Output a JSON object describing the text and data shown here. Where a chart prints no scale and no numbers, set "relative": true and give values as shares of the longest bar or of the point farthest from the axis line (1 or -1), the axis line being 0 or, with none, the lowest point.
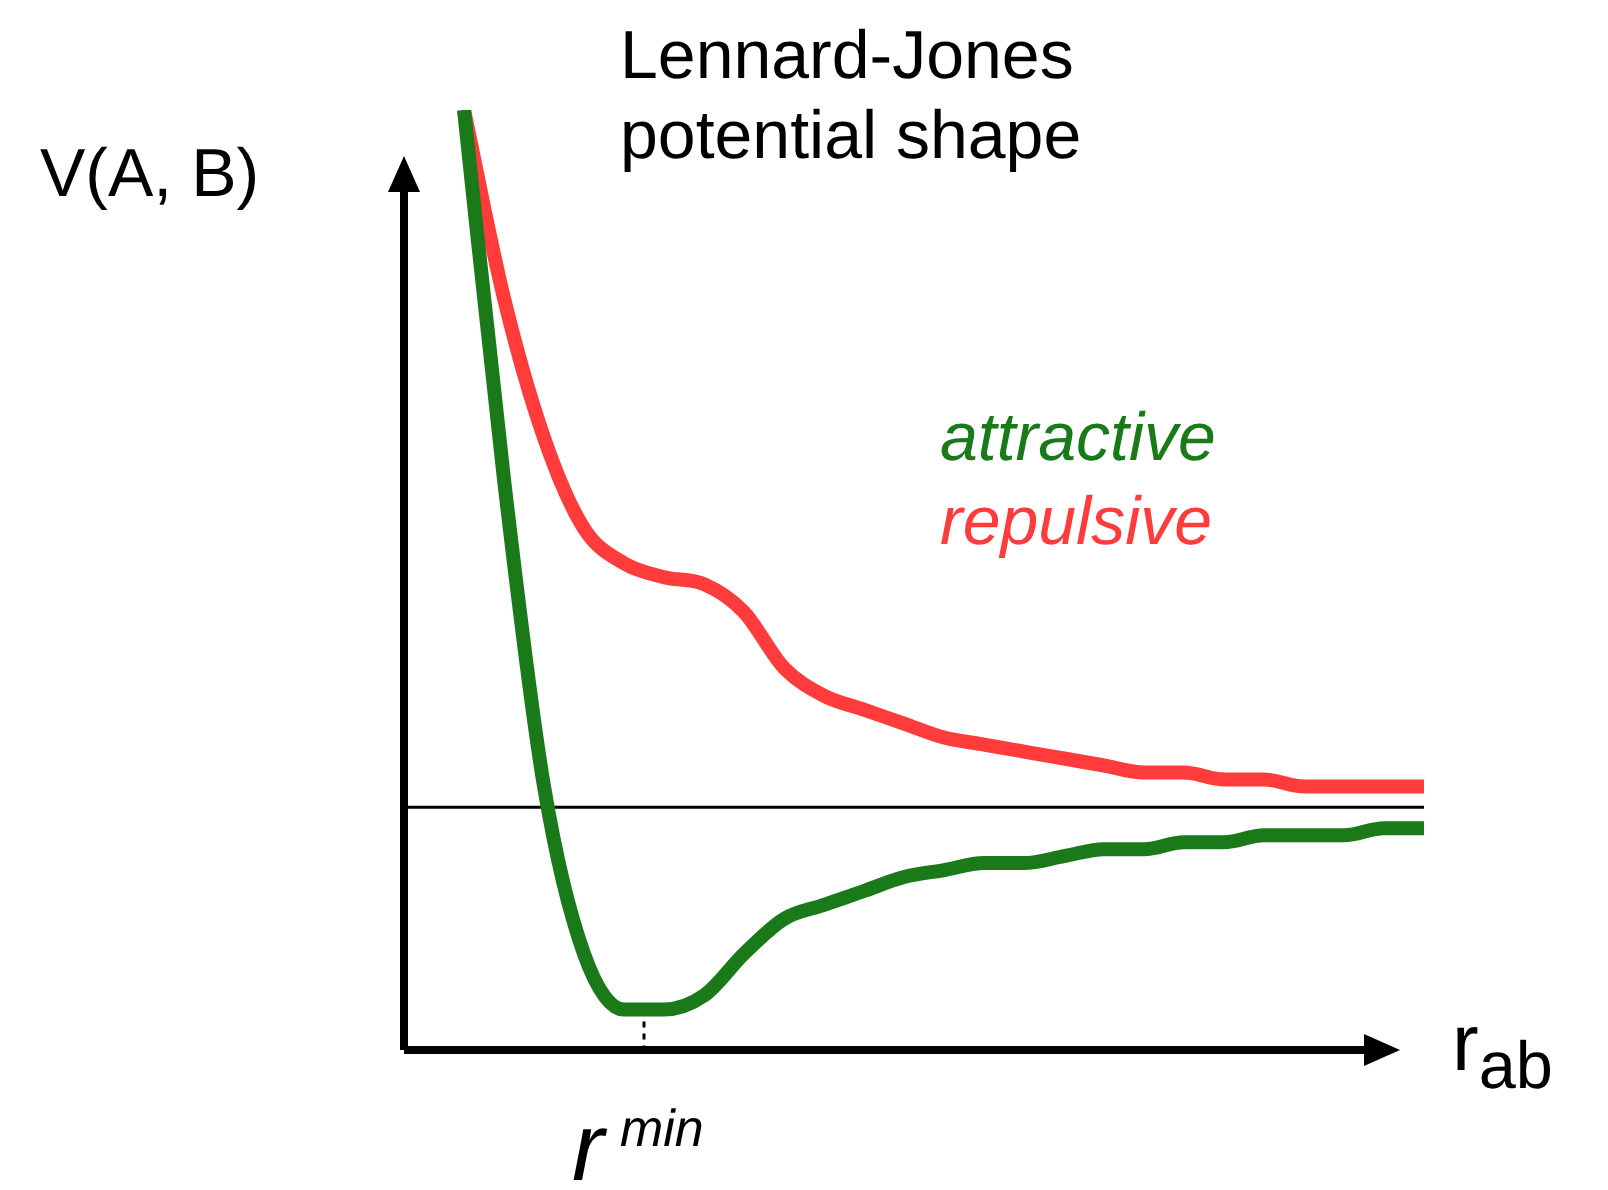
{
  "chart_data": {
    "type": "line",
    "title": "Lennard-Jones potential shape",
    "ylabel": "V(A, B)",
    "xlabel": "r$_{ab}$",
    "relative": true,
    "legend": "top right",
    "annotations": [
      "r$^{min}$"
    ],
    "marker": "none",
    "line_style": "solid",
    "categories": [
      null,
      null,
      null,
      null,
      null,
      null,
      null,
      null,
      null,
      null,
      null,
      null,
      null,
      null,
      null,
      null,
      null,
      null,
      null,
      null,
      null,
      null,
      null,
      null,
      null
    ],
    "series": [
      {
        "name": "attractive",
        "color": "#1a7a1a",
        "values": [
          1,
          0.47,
          0.03,
          -0.21,
          -0.29,
          -0.29,
          -0.27,
          -0.21,
          -0.16,
          -0.14,
          -0.12,
          -0.1,
          -0.09,
          -0.08,
          -0.08,
          -0.07,
          -0.06,
          -0.06,
          -0.05,
          -0.05,
          -0.04,
          -0.04,
          -0.04,
          -0.03,
          -0.03
        ]
      },
      {
        "name": "repulsive",
        "color": "#ff3b3b",
        "values": [
          1,
          0.73,
          0.53,
          0.4,
          0.35,
          0.33,
          0.32,
          0.28,
          0.2,
          0.16,
          0.14,
          0.12,
          0.1,
          0.09,
          0.08,
          0.07,
          0.06,
          0.05,
          0.05,
          0.04,
          0.04,
          0.03,
          0.03,
          0.03,
          0.03
        ]
      }
    ],
    "ref_lines": [
      {
        "axis": "y",
        "value": 0,
        "color": "#000000",
        "line_style": "solid"
      }
    ]
  }
}
